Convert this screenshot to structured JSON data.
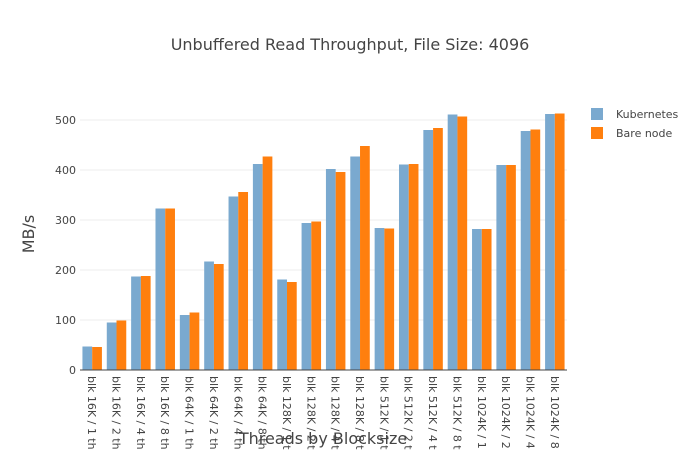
{
  "chart_data": {
    "type": "bar",
    "title": "Unbuffered Read Throughput, File Size: 4096",
    "xlabel": "Threads by Blocksize",
    "ylabel": "MB/s",
    "ylim": [
      0,
      550
    ],
    "yticks": [
      0,
      100,
      200,
      300,
      400,
      500
    ],
    "legend_position": "top-right",
    "categories": [
      "blk 16K / 1 th",
      "blk 16K / 2 th",
      "blk 16K / 4 th",
      "blk 16K / 8 th",
      "blk 64K / 1 th",
      "blk 64K / 2 th",
      "blk 64K / 4 th",
      "blk 64K / 8 th",
      "blk 128K / 1 t",
      "blk 128K / 2 t",
      "blk 128K / 4 t",
      "blk 128K / 8 t",
      "blk 512K / 1 t",
      "blk 512K / 2 t",
      "blk 512K / 4 t",
      "blk 512K / 8 t",
      "blk 1024K / 1",
      "blk 1024K / 2",
      "blk 1024K / 4",
      "blk 1024K / 8"
    ],
    "series": [
      {
        "name": "Kubernetes",
        "color": "#7aa9cf",
        "values": [
          47,
          95,
          187,
          323,
          110,
          217,
          347,
          412,
          181,
          294,
          402,
          427,
          284,
          411,
          480,
          511,
          282,
          410,
          478,
          512
        ]
      },
      {
        "name": "Bare node",
        "color": "#ff7f0e",
        "values": [
          46,
          99,
          188,
          323,
          115,
          212,
          356,
          427,
          176,
          297,
          396,
          448,
          283,
          412,
          484,
          507,
          282,
          410,
          481,
          513
        ]
      }
    ]
  }
}
